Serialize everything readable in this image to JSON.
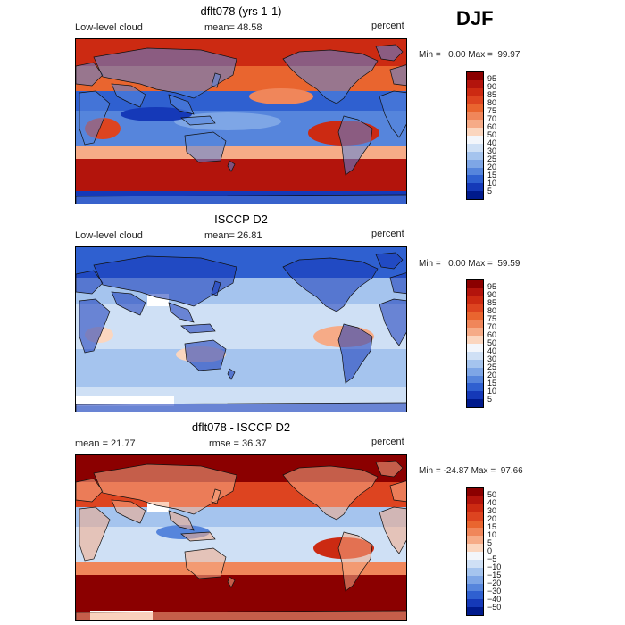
{
  "season": "DJF",
  "panels": [
    {
      "title": "dflt078 (yrs 1-1)",
      "left_label": "Low-level cloud",
      "mid_label": "mean=  48.58",
      "right_label": "percent",
      "minmax": "Min =   0.00 Max =  99.97",
      "map_style": "model",
      "colorbar": {
        "labels": [
          "95",
          "90",
          "85",
          "80",
          "75",
          "70",
          "60",
          "50",
          "40",
          "30",
          "25",
          "20",
          "15",
          "10",
          "5"
        ],
        "colors": [
          "#8b0000",
          "#b3140c",
          "#cc2a12",
          "#dd4420",
          "#e9652f",
          "#f0865a",
          "#f6ab87",
          "#fbd6bf",
          "#f3f6fb",
          "#cfe0f5",
          "#a5c4ee",
          "#7ea6e6",
          "#5685dc",
          "#2f60d0",
          "#1539b8",
          "#001a8c"
        ]
      }
    },
    {
      "title": "ISCCP D2",
      "left_label": "Low-level cloud",
      "mid_label": "mean=  26.81",
      "right_label": "percent",
      "minmax": "Min =   0.00 Max =  59.59",
      "map_style": "obs",
      "colorbar": {
        "labels": [
          "95",
          "90",
          "85",
          "80",
          "75",
          "70",
          "60",
          "50",
          "40",
          "30",
          "25",
          "20",
          "15",
          "10",
          "5"
        ],
        "colors": [
          "#8b0000",
          "#b3140c",
          "#cc2a12",
          "#dd4420",
          "#e9652f",
          "#f0865a",
          "#f6ab87",
          "#fbd6bf",
          "#f3f6fb",
          "#cfe0f5",
          "#a5c4ee",
          "#7ea6e6",
          "#5685dc",
          "#2f60d0",
          "#1539b8",
          "#001a8c"
        ]
      }
    },
    {
      "title": "dflt078 - ISCCP D2",
      "left_label": "mean =  21.77",
      "mid_label": "rmse =  36.37",
      "right_label": "percent",
      "minmax": "Min = -24.87 Max =  97.66",
      "map_style": "diff",
      "colorbar": {
        "labels": [
          "50",
          "40",
          "30",
          "20",
          "15",
          "10",
          "5",
          "0",
          "−5",
          "−10",
          "−15",
          "−20",
          "−30",
          "−40",
          "−50"
        ],
        "colors": [
          "#8b0000",
          "#b3140c",
          "#cc2a12",
          "#dd4420",
          "#e9652f",
          "#f0865a",
          "#f6ab87",
          "#fbd6bf",
          "#f3f6fb",
          "#cfe0f5",
          "#a5c4ee",
          "#7ea6e6",
          "#5685dc",
          "#2f60d0",
          "#1539b8",
          "#001a8c"
        ]
      }
    }
  ]
}
